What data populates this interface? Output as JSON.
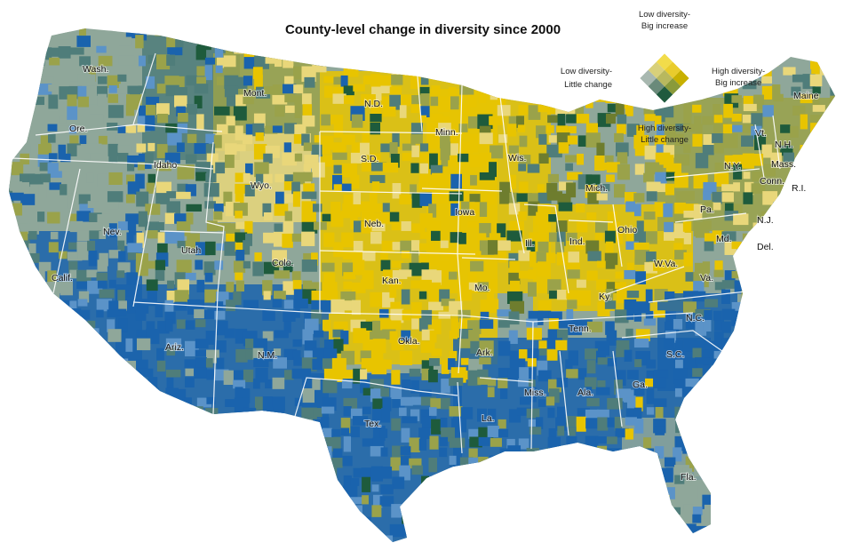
{
  "title": "County-level change in diversity since 2000",
  "legend": {
    "top_line1": "Low diversity-",
    "top_line2": "Big increase",
    "left_line1": "Low diversity-",
    "left_line2": "Little change",
    "right_line1": "High diversity-",
    "right_line2": "Big increase",
    "bottom_line1": "High diversity-",
    "bottom_line2": "Little change",
    "colors": [
      "#f2dc4a",
      "#e9cc2c",
      "#c8b000",
      "#d8d07a",
      "#b8b85e",
      "#8a9a3a",
      "#a8b8b0",
      "#6a8a7a",
      "#1f5a3e"
    ]
  },
  "palette": {
    "yellow": "#e8c400",
    "light_yellow": "#e9d77a",
    "olive": "#9aa24a",
    "dark_olive": "#6e7d2e",
    "dark_green": "#1e5b3c",
    "teal": "#4f7d7a",
    "gray_green": "#8fa79a",
    "light_blue": "#5b93c8",
    "blue": "#1a63ad"
  },
  "states": [
    "Wash.",
    "Ore.",
    "Calif.",
    "Idaho",
    "Nev.",
    "Mont.",
    "Wyo.",
    "Utah",
    "Colo.",
    "Ariz.",
    "N.M.",
    "N.D.",
    "S.D.",
    "Neb.",
    "Kan.",
    "Okla.",
    "Tex.",
    "Minn.",
    "Iowa",
    "Mo.",
    "Ark.",
    "La.",
    "Wis.",
    "Ill.",
    "Mich.",
    "Ind.",
    "Ohio",
    "Ky.",
    "Tenn.",
    "Miss.",
    "Ala.",
    "Ga.",
    "Fla.",
    "S.C.",
    "N.C.",
    "Va.",
    "W.Va.",
    "Md.",
    "Del.",
    "N.J.",
    "Pa.",
    "N.Y.",
    "Vt.",
    "N.H.",
    "Maine",
    "Mass.",
    "Conn.",
    "R.I."
  ]
}
